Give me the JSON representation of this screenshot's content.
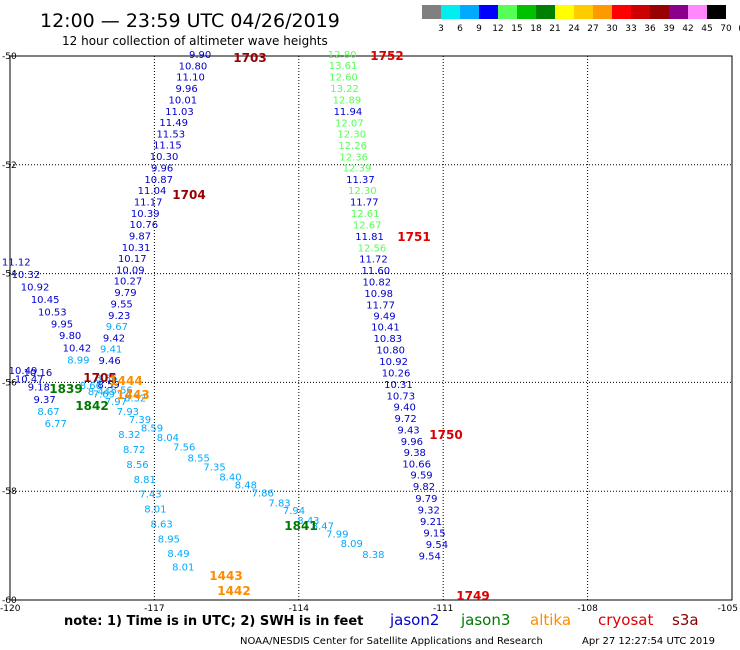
{
  "title": "12:00 — 23:59 UTC 04/26/2019",
  "subtitle": "12 hour collection of altimeter wave heights",
  "colorbar": {
    "labels": [
      "3",
      "6",
      "9",
      "12",
      "15",
      "18",
      "21",
      "24",
      "27",
      "30",
      "33",
      "36",
      "39",
      "42",
      "45",
      "70",
      "(ft)"
    ],
    "colors": [
      "#808080",
      "#00eeee",
      "#00aaff",
      "#0000ff",
      "#55ff55",
      "#00c000",
      "#008000",
      "#ffff00",
      "#ffcc00",
      "#ff9900",
      "#ff0000",
      "#cc0000",
      "#990000",
      "#8b008b",
      "#ff88ff",
      "#000000"
    ]
  },
  "latitude_labels": [
    "-50",
    "-52",
    "-54",
    "-56",
    "-58",
    "-60"
  ],
  "longitude_labels": [
    "-120",
    "-117",
    "-114",
    "-111",
    "-108",
    "-105"
  ],
  "note": "note:  1) Time is in UTC;  2) SWH is in feet",
  "satellites": [
    {
      "name": "jason2",
      "color": "#0000cc"
    },
    {
      "name": "jason3",
      "color": "#007a00"
    },
    {
      "name": "altika",
      "color": "#ff8c00"
    },
    {
      "name": "cryosat",
      "color": "#dd0000"
    },
    {
      "name": "s3a",
      "color": "#880000"
    }
  ],
  "footer": {
    "center": "NOAA/NESDIS Center for Satellite Applications and Research",
    "timestamp": "Apr 27 12:27:54 UTC 2019"
  },
  "tracks": {
    "track_1703": {
      "time": "1703",
      "time_color": "#990000",
      "obs": [
        {
          "v": "9.90",
          "lon": -116.05,
          "lat": -50.04,
          "c": "#0000cc"
        },
        {
          "v": "10.80",
          "lon": -116.2,
          "lat": -50.25,
          "c": "#0000cc"
        },
        {
          "v": "11.10",
          "lon": -116.25,
          "lat": -50.45,
          "c": "#0000cc"
        },
        {
          "v": "9.96",
          "lon": -116.33,
          "lat": -50.66,
          "c": "#0000cc"
        },
        {
          "v": "10.01",
          "lon": -116.41,
          "lat": -50.87,
          "c": "#0000cc"
        },
        {
          "v": "11.03",
          "lon": -116.48,
          "lat": -51.08,
          "c": "#0000cc"
        },
        {
          "v": "11.49",
          "lon": -116.6,
          "lat": -51.29,
          "c": "#0000cc"
        },
        {
          "v": "11.53",
          "lon": -116.66,
          "lat": -51.5,
          "c": "#0000cc"
        },
        {
          "v": "11.15",
          "lon": -116.73,
          "lat": -51.7,
          "c": "#0000cc"
        },
        {
          "v": "10.30",
          "lon": -116.8,
          "lat": -51.91,
          "c": "#0000cc"
        },
        {
          "v": "9.96",
          "lon": -116.84,
          "lat": -52.12,
          "c": "#0000cc"
        },
        {
          "v": "10.87",
          "lon": -116.91,
          "lat": -52.33,
          "c": "#0000cc"
        },
        {
          "v": "11.04",
          "lon": -117.05,
          "lat": -52.54,
          "c": "#0000cc"
        },
        {
          "v": "11.17",
          "lon": -117.13,
          "lat": -52.75,
          "c": "#0000cc"
        },
        {
          "v": "10.39",
          "lon": -117.19,
          "lat": -52.96,
          "c": "#0000cc"
        },
        {
          "v": "10.76",
          "lon": -117.22,
          "lat": -53.16,
          "c": "#0000cc"
        },
        {
          "v": "9.87",
          "lon": -117.3,
          "lat": -53.37,
          "c": "#0000cc"
        },
        {
          "v": "10.31",
          "lon": -117.38,
          "lat": -53.58,
          "c": "#0000cc"
        },
        {
          "v": "10.17",
          "lon": -117.46,
          "lat": -53.79,
          "c": "#0000cc"
        },
        {
          "v": "10.09",
          "lon": -117.5,
          "lat": -54.0,
          "c": "#0000cc"
        },
        {
          "v": "10.27",
          "lon": -117.55,
          "lat": -54.2,
          "c": "#0000cc"
        },
        {
          "v": "9.79",
          "lon": -117.6,
          "lat": -54.41,
          "c": "#0000cc"
        },
        {
          "v": "9.55",
          "lon": -117.68,
          "lat": -54.62,
          "c": "#0000cc"
        },
        {
          "v": "9.23",
          "lon": -117.73,
          "lat": -54.83,
          "c": "#0000cc"
        },
        {
          "v": "9.67",
          "lon": -117.78,
          "lat": -55.04,
          "c": "#00aaff"
        },
        {
          "v": "9.42",
          "lon": -117.84,
          "lat": -55.25,
          "c": "#0000cc"
        },
        {
          "v": "9.41",
          "lon": -117.9,
          "lat": -55.45,
          "c": "#00aaff"
        },
        {
          "v": "9.46",
          "lon": -117.93,
          "lat": -55.66,
          "c": "#0000cc"
        }
      ]
    },
    "track_1704": {
      "time": "1704",
      "time_color": "#990000",
      "obs": [
        {
          "v": "11.12",
          "lon": -119.87,
          "lat": -53.85,
          "c": "#0000cc"
        },
        {
          "v": "10.32",
          "lon": -119.67,
          "lat": -54.08,
          "c": "#0000cc"
        },
        {
          "v": "10.92",
          "lon": -119.48,
          "lat": -54.31,
          "c": "#0000cc"
        },
        {
          "v": "10.45",
          "lon": -119.27,
          "lat": -54.54,
          "c": "#0000cc"
        },
        {
          "v": "10.53",
          "lon": -119.12,
          "lat": -54.77,
          "c": "#0000cc"
        },
        {
          "v": "9.95",
          "lon": -118.92,
          "lat": -54.99,
          "c": "#0000cc"
        },
        {
          "v": "9.80",
          "lon": -118.75,
          "lat": -55.2,
          "c": "#0000cc"
        },
        {
          "v": "10.42",
          "lon": -118.61,
          "lat": -55.43,
          "c": "#0000cc"
        },
        {
          "v": "8.99",
          "lon": -118.58,
          "lat": -55.65,
          "c": "#00aaff"
        }
      ]
    },
    "track_1705": {
      "time": "1705",
      "time_color": "#990000",
      "obs": [
        {
          "v": "10.49",
          "lon": -119.73,
          "lat": -55.85,
          "c": "#0000cc"
        },
        {
          "v": "10.47",
          "lon": -119.6,
          "lat": -56.0,
          "c": "#0000cc"
        },
        {
          "v": "10.16",
          "lon": -119.42,
          "lat": -55.88,
          "c": "#0000cc"
        },
        {
          "v": "9.18",
          "lon": -119.4,
          "lat": -56.15,
          "c": "#0000cc"
        },
        {
          "v": "9.37",
          "lon": -119.28,
          "lat": -56.38,
          "c": "#0000cc"
        },
        {
          "v": "8.67",
          "lon": -119.2,
          "lat": -56.6,
          "c": "#00aaff"
        },
        {
          "v": "6.77",
          "lon": -119.05,
          "lat": -56.82,
          "c": "#00aaff"
        }
      ]
    },
    "track_1749": {
      "time": "1749",
      "time_color": "#dd0000",
      "obs": []
    },
    "track_1750": {
      "time": "1750",
      "time_color": "#dd0000",
      "obs": [
        {
          "v": "12.80",
          "lon": -113.1,
          "lat": -50.04,
          "c": "#55ff55"
        },
        {
          "v": "13.61",
          "lon": -113.08,
          "lat": -50.24,
          "c": "#55ff55"
        },
        {
          "v": "12.60",
          "lon": -113.07,
          "lat": -50.45,
          "c": "#55ff55"
        },
        {
          "v": "13.22",
          "lon": -113.05,
          "lat": -50.66,
          "c": "#55ff55"
        },
        {
          "v": "12.89",
          "lon": -113.0,
          "lat": -50.87,
          "c": "#55ff55"
        },
        {
          "v": "11.94",
          "lon": -112.98,
          "lat": -51.08,
          "c": "#0000cc"
        },
        {
          "v": "12.07",
          "lon": -112.95,
          "lat": -51.3,
          "c": "#55ff55"
        },
        {
          "v": "12.30",
          "lon": -112.9,
          "lat": -51.5,
          "c": "#55ff55"
        },
        {
          "v": "12.26",
          "lon": -112.88,
          "lat": -51.71,
          "c": "#55ff55"
        },
        {
          "v": "12.36",
          "lon": -112.86,
          "lat": -51.92,
          "c": "#55ff55"
        },
        {
          "v": "12.39",
          "lon": -112.79,
          "lat": -52.12,
          "c": "#55ff55"
        },
        {
          "v": "11.37",
          "lon": -112.72,
          "lat": -52.33,
          "c": "#0000cc"
        },
        {
          "v": "12.30",
          "lon": -112.68,
          "lat": -52.54,
          "c": "#55ff55"
        },
        {
          "v": "11.77",
          "lon": -112.64,
          "lat": -52.75,
          "c": "#0000cc"
        },
        {
          "v": "12.61",
          "lon": -112.62,
          "lat": -52.96,
          "c": "#55ff55"
        },
        {
          "v": "12.67",
          "lon": -112.58,
          "lat": -53.17,
          "c": "#55ff55"
        },
        {
          "v": "11.81",
          "lon": -112.53,
          "lat": -53.38,
          "c": "#0000cc"
        },
        {
          "v": "12.56",
          "lon": -112.48,
          "lat": -53.59,
          "c": "#55ff55"
        },
        {
          "v": "11.72",
          "lon": -112.45,
          "lat": -53.8,
          "c": "#0000cc"
        },
        {
          "v": "11.60",
          "lon": -112.4,
          "lat": -54.01,
          "c": "#0000cc"
        },
        {
          "v": "10.82",
          "lon": -112.38,
          "lat": -54.22,
          "c": "#0000cc"
        },
        {
          "v": "10.98",
          "lon": -112.34,
          "lat": -54.43,
          "c": "#0000cc"
        },
        {
          "v": "11.77",
          "lon": -112.3,
          "lat": -54.64,
          "c": "#0000cc"
        },
        {
          "v": "9.49",
          "lon": -112.22,
          "lat": -54.84,
          "c": "#0000cc"
        },
        {
          "v": "10.41",
          "lon": -112.2,
          "lat": -55.05,
          "c": "#0000cc"
        },
        {
          "v": "10.83",
          "lon": -112.15,
          "lat": -55.26,
          "c": "#0000cc"
        },
        {
          "v": "10.80",
          "lon": -112.09,
          "lat": -55.47,
          "c": "#0000cc"
        },
        {
          "v": "10.92",
          "lon": -112.03,
          "lat": -55.68,
          "c": "#0000cc"
        },
        {
          "v": "10.26",
          "lon": -111.98,
          "lat": -55.89,
          "c": "#0000cc"
        },
        {
          "v": "10.31",
          "lon": -111.93,
          "lat": -56.1,
          "c": "#0000cc"
        },
        {
          "v": "10.73",
          "lon": -111.88,
          "lat": -56.31,
          "c": "#0000cc"
        },
        {
          "v": "9.40",
          "lon": -111.8,
          "lat": -56.52,
          "c": "#0000cc"
        },
        {
          "v": "9.72",
          "lon": -111.78,
          "lat": -56.73,
          "c": "#0000cc"
        },
        {
          "v": "9.43",
          "lon": -111.72,
          "lat": -56.94,
          "c": "#0000cc"
        },
        {
          "v": "9.96",
          "lon": -111.65,
          "lat": -57.15,
          "c": "#0000cc"
        },
        {
          "v": "9.38",
          "lon": -111.59,
          "lat": -57.35,
          "c": "#0000cc"
        },
        {
          "v": "10.66",
          "lon": -111.55,
          "lat": -57.56,
          "c": "#0000cc"
        },
        {
          "v": "9.59",
          "lon": -111.45,
          "lat": -57.77,
          "c": "#0000cc"
        },
        {
          "v": "9.82",
          "lon": -111.4,
          "lat": -57.98,
          "c": "#0000cc"
        },
        {
          "v": "9.79",
          "lon": -111.35,
          "lat": -58.2,
          "c": "#0000cc"
        },
        {
          "v": "9.32",
          "lon": -111.3,
          "lat": -58.41,
          "c": "#0000cc"
        },
        {
          "v": "9.21",
          "lon": -111.25,
          "lat": -58.62,
          "c": "#0000cc"
        },
        {
          "v": "9.15",
          "lon": -111.18,
          "lat": -58.83,
          "c": "#0000cc"
        },
        {
          "v": "9.54",
          "lon": -111.13,
          "lat": -59.04,
          "c": "#0000cc"
        },
        {
          "v": "9.54",
          "lon": -111.28,
          "lat": -59.26,
          "c": "#0000cc"
        }
      ]
    },
    "track_1751": {
      "time": "1751",
      "time_color": "#dd0000",
      "obs": []
    },
    "track_1752": {
      "time": "1752",
      "time_color": "#dd0000",
      "obs": []
    },
    "track_1839": {
      "time": "1839",
      "time_color": "#007a00",
      "obs": []
    },
    "track_1841": {
      "time": "1841",
      "time_color": "#007a00",
      "obs": [
        {
          "v": "8.43",
          "lon": -113.8,
          "lat": -58.6,
          "c": "#00aaff"
        },
        {
          "v": "8.47",
          "lon": -113.5,
          "lat": -58.7,
          "c": "#00aaff"
        },
        {
          "v": "7.99",
          "lon": -113.2,
          "lat": -58.85,
          "c": "#00aaff"
        },
        {
          "v": "8.09",
          "lon": -112.9,
          "lat": -59.03,
          "c": "#00aaff"
        },
        {
          "v": "8.38",
          "lon": -112.45,
          "lat": -59.23,
          "c": "#00aaff"
        },
        {
          "v": "7.94",
          "lon": -114.1,
          "lat": -58.42,
          "c": "#00aaff"
        },
        {
          "v": "7.83",
          "lon": -114.4,
          "lat": -58.28,
          "c": "#00aaff"
        },
        {
          "v": "7.86",
          "lon": -114.75,
          "lat": -58.1,
          "c": "#00aaff"
        },
        {
          "v": "8.48",
          "lon": -115.1,
          "lat": -57.95,
          "c": "#00aaff"
        },
        {
          "v": "8.40",
          "lon": -115.42,
          "lat": -57.8,
          "c": "#00aaff"
        },
        {
          "v": "7.35",
          "lon": -115.75,
          "lat": -57.62,
          "c": "#00aaff"
        },
        {
          "v": "8.55",
          "lon": -116.08,
          "lat": -57.45,
          "c": "#00aaff"
        },
        {
          "v": "7.56",
          "lon": -116.38,
          "lat": -57.25,
          "c": "#00aaff"
        },
        {
          "v": "8.04",
          "lon": -116.72,
          "lat": -57.08,
          "c": "#00aaff"
        },
        {
          "v": "8.59",
          "lon": -117.05,
          "lat": -56.9,
          "c": "#00aaff"
        },
        {
          "v": "7.39",
          "lon": -117.3,
          "lat": -56.75,
          "c": "#00aaff"
        },
        {
          "v": "7.93",
          "lon": -117.55,
          "lat": -56.6,
          "c": "#00aaff"
        },
        {
          "v": "7.97",
          "lon": -117.8,
          "lat": -56.42,
          "c": "#00aaff"
        },
        {
          "v": "7.69",
          "lon": -118.05,
          "lat": -56.28,
          "c": "#00aaff"
        },
        {
          "v": "8.66",
          "lon": -118.32,
          "lat": -56.12,
          "c": "#00aaff"
        },
        {
          "v": "8.44",
          "lon": -118.15,
          "lat": -56.23,
          "c": "#00aaff"
        },
        {
          "v": "8.56",
          "lon": -117.68,
          "lat": -56.2,
          "c": "#00aaff"
        },
        {
          "v": "8.32",
          "lon": -117.4,
          "lat": -56.35,
          "c": "#00aaff"
        }
      ]
    },
    "track_1842": {
      "time": "1842",
      "time_color": "#007a00",
      "obs": []
    },
    "track_1442": {
      "time": "1442",
      "time_color": "#ff8c00",
      "obs": []
    },
    "track_1443a": {
      "time": "1443",
      "time_color": "#ff8c00",
      "obs": [
        {
          "v": "8.32",
          "lon": -117.52,
          "lat": -57.02,
          "c": "#00aaff"
        },
        {
          "v": "8.72",
          "lon": -117.42,
          "lat": -57.3,
          "c": "#00aaff"
        },
        {
          "v": "8.56",
          "lon": -117.35,
          "lat": -57.57,
          "c": "#00aaff"
        },
        {
          "v": "8.81",
          "lon": -117.2,
          "lat": -57.85,
          "c": "#00aaff"
        },
        {
          "v": "7.43",
          "lon": -117.08,
          "lat": -58.12,
          "c": "#00aaff"
        },
        {
          "v": "8.01",
          "lon": -116.98,
          "lat": -58.39,
          "c": "#00aaff"
        },
        {
          "v": "8.63",
          "lon": -116.85,
          "lat": -58.67,
          "c": "#00aaff"
        },
        {
          "v": "8.95",
          "lon": -116.7,
          "lat": -58.94,
          "c": "#00aaff"
        },
        {
          "v": "8.49",
          "lon": -116.5,
          "lat": -59.21,
          "c": "#00aaff"
        },
        {
          "v": "8.01",
          "lon": -116.4,
          "lat": -59.46,
          "c": "#00aaff"
        },
        {
          "v": "8.86",
          "lon": -118.0,
          "lat": -55.98,
          "c": "#00aaff"
        },
        {
          "v": "8.59",
          "lon": -117.95,
          "lat": -56.1,
          "c": "#0000cc"
        }
      ]
    },
    "track_1443b": {
      "time": "1443",
      "time_color": "#ff8c00",
      "obs": []
    },
    "track_1444": {
      "time": "1444",
      "time_color": "#ff8c00",
      "obs": []
    }
  }
}
